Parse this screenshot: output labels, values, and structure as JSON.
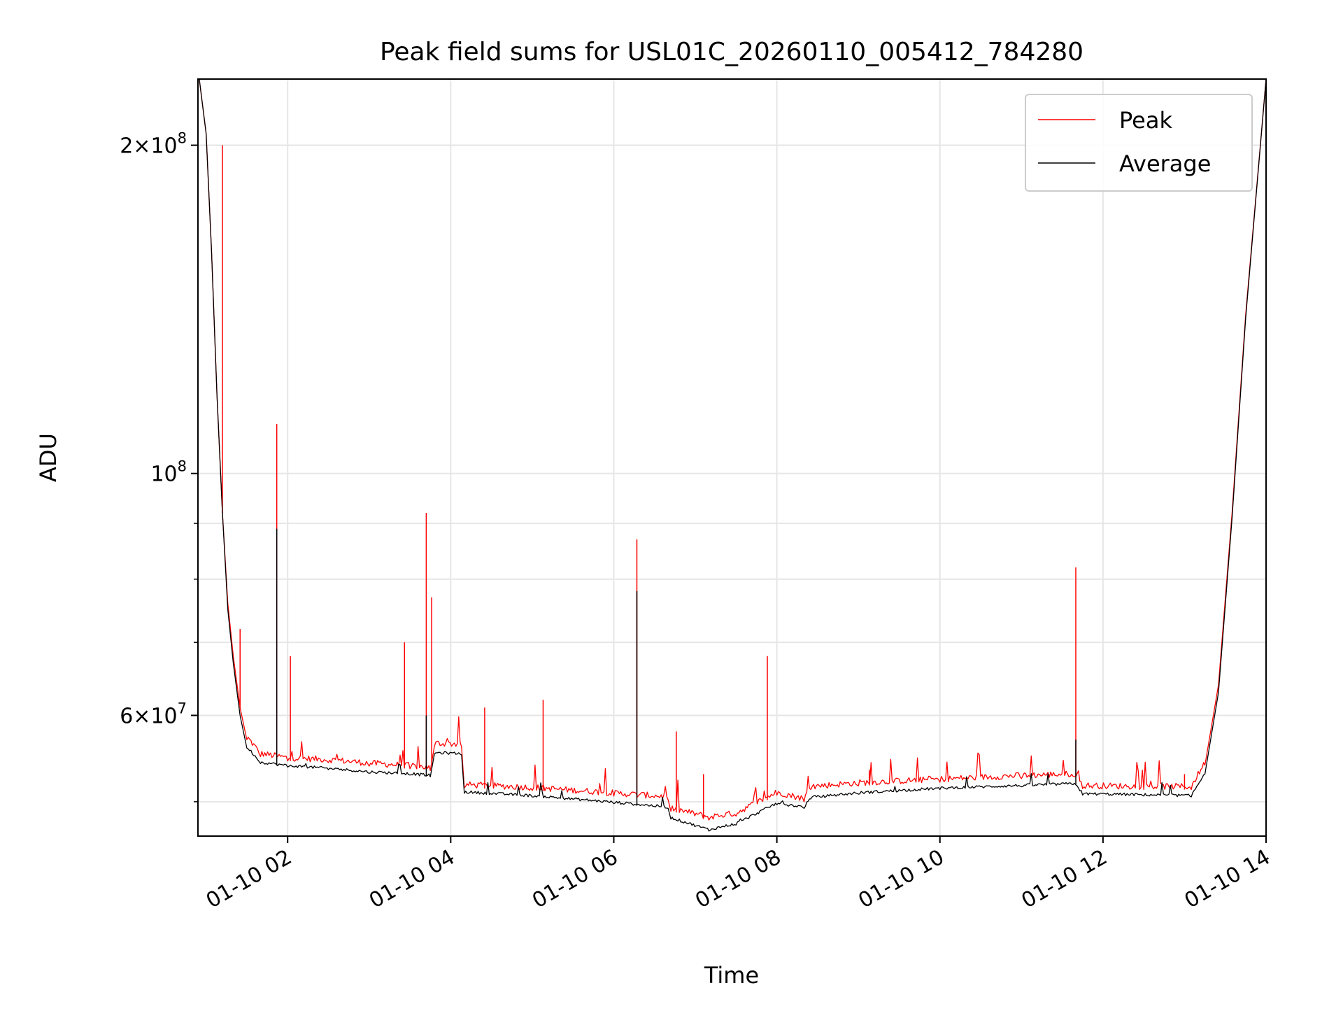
{
  "chart_data": {
    "type": "line",
    "title": "Peak field sums for USL01C_20260110_005412_784280",
    "xlabel": "Time",
    "ylabel": "ADU",
    "x_scale": "time",
    "y_scale": "log",
    "xlim": [
      "2026-01-10 00:54",
      "2026-01-10 14:00"
    ],
    "ylim": [
      46500000,
      230000000
    ],
    "grid": true,
    "legend_position": "upper right",
    "x_ticks": [
      {
        "value": "2026-01-10 02:00",
        "label": "01-10 02"
      },
      {
        "value": "2026-01-10 04:00",
        "label": "01-10 04"
      },
      {
        "value": "2026-01-10 06:00",
        "label": "01-10 06"
      },
      {
        "value": "2026-01-10 08:00",
        "label": "01-10 08"
      },
      {
        "value": "2026-01-10 10:00",
        "label": "01-10 10"
      },
      {
        "value": "2026-01-10 12:00",
        "label": "01-10 12"
      },
      {
        "value": "2026-01-10 14:00",
        "label": "01-10 14"
      }
    ],
    "y_major_ticks": [
      {
        "value": 200000000,
        "label_mantissa": "2",
        "label_base": "×10",
        "label_exp": "8"
      },
      {
        "value": 100000000,
        "label_mantissa": "",
        "label_base": "10",
        "label_exp": "8"
      },
      {
        "value": 60000000,
        "label_mantissa": "6",
        "label_base": "×10",
        "label_exp": "7"
      }
    ],
    "y_minor_ticks": [
      50000000,
      60000000,
      70000000,
      80000000,
      90000000,
      200000000
    ],
    "series": [
      {
        "name": "Peak",
        "color": "#ff0000",
        "points": [
          [
            "2026-01-10 00:55",
            230000000
          ],
          [
            "2026-01-10 01:00",
            205000000
          ],
          [
            "2026-01-10 01:04",
            160000000
          ],
          [
            "2026-01-10 01:08",
            118000000
          ],
          [
            "2026-01-10 01:12",
            92000000
          ],
          [
            "2026-01-10 01:16",
            76000000
          ],
          [
            "2026-01-10 01:20",
            68000000
          ],
          [
            "2026-01-10 01:25",
            61000000
          ],
          [
            "2026-01-10 01:30",
            57000000
          ],
          [
            "2026-01-10 01:40",
            55000000
          ],
          [
            "2026-01-10 02:00",
            54500000
          ],
          [
            "2026-01-10 02:30",
            54300000
          ],
          [
            "2026-01-10 03:00",
            53900000
          ],
          [
            "2026-01-10 03:30",
            53600000
          ],
          [
            "2026-01-10 03:45",
            53400000
          ],
          [
            "2026-01-10 03:48",
            56200000
          ],
          [
            "2026-01-10 04:08",
            56100000
          ],
          [
            "2026-01-10 04:10",
            51500000
          ],
          [
            "2026-01-10 05:00",
            51200000
          ],
          [
            "2026-01-10 06:00",
            50600000
          ],
          [
            "2026-01-10 06:40",
            50200000
          ],
          [
            "2026-01-10 06:42",
            49000000
          ],
          [
            "2026-01-10 07:10",
            48100000
          ],
          [
            "2026-01-10 07:30",
            48500000
          ],
          [
            "2026-01-10 08:00",
            50700000
          ],
          [
            "2026-01-10 08:20",
            50000000
          ],
          [
            "2026-01-10 08:25",
            51300000
          ],
          [
            "2026-01-10 09:00",
            51700000
          ],
          [
            "2026-01-10 10:00",
            52100000
          ],
          [
            "2026-01-10 11:00",
            52500000
          ],
          [
            "2026-01-10 11:40",
            52700000
          ],
          [
            "2026-01-10 11:45",
            51400000
          ],
          [
            "2026-01-10 12:30",
            51300000
          ],
          [
            "2026-01-10 13:05",
            51300000
          ],
          [
            "2026-01-10 13:15",
            54000000
          ],
          [
            "2026-01-10 13:25",
            64000000
          ],
          [
            "2026-01-10 13:35",
            92000000
          ],
          [
            "2026-01-10 13:45",
            140000000
          ],
          [
            "2026-01-10 14:00",
            230000000
          ]
        ],
        "spikes": [
          [
            "2026-01-10 01:12",
            200000000
          ],
          [
            "2026-01-10 01:25",
            72000000
          ],
          [
            "2026-01-10 01:52",
            111000000
          ],
          [
            "2026-01-10 02:02",
            68000000
          ],
          [
            "2026-01-10 03:26",
            70000000
          ],
          [
            "2026-01-10 03:42",
            92000000
          ],
          [
            "2026-01-10 03:46",
            77000000
          ],
          [
            "2026-01-10 04:25",
            61000000
          ],
          [
            "2026-01-10 05:08",
            62000000
          ],
          [
            "2026-01-10 06:17",
            87000000
          ],
          [
            "2026-01-10 06:46",
            58000000
          ],
          [
            "2026-01-10 07:06",
            53000000
          ],
          [
            "2026-01-10 07:53",
            68000000
          ],
          [
            "2026-01-10 09:08",
            53500000
          ],
          [
            "2026-01-10 11:40",
            82000000
          ],
          [
            "2026-01-10 13:00",
            53000000
          ]
        ]
      },
      {
        "name": "Average",
        "color": "#000000",
        "points": [
          [
            "2026-01-10 00:55",
            230000000
          ],
          [
            "2026-01-10 01:00",
            205000000
          ],
          [
            "2026-01-10 01:04",
            160000000
          ],
          [
            "2026-01-10 01:08",
            118000000
          ],
          [
            "2026-01-10 01:12",
            92000000
          ],
          [
            "2026-01-10 01:16",
            75000000
          ],
          [
            "2026-01-10 01:20",
            67000000
          ],
          [
            "2026-01-10 01:25",
            60000000
          ],
          [
            "2026-01-10 01:30",
            56000000
          ],
          [
            "2026-01-10 01:40",
            54200000
          ],
          [
            "2026-01-10 02:00",
            53800000
          ],
          [
            "2026-01-10 02:30",
            53500000
          ],
          [
            "2026-01-10 03:00",
            53100000
          ],
          [
            "2026-01-10 03:30",
            52900000
          ],
          [
            "2026-01-10 03:45",
            52700000
          ],
          [
            "2026-01-10 03:48",
            55300000
          ],
          [
            "2026-01-10 04:08",
            55200000
          ],
          [
            "2026-01-10 04:10",
            50900000
          ],
          [
            "2026-01-10 05:00",
            50500000
          ],
          [
            "2026-01-10 06:00",
            49800000
          ],
          [
            "2026-01-10 06:40",
            49300000
          ],
          [
            "2026-01-10 06:42",
            48200000
          ],
          [
            "2026-01-10 07:10",
            47000000
          ],
          [
            "2026-01-10 07:30",
            47600000
          ],
          [
            "2026-01-10 08:00",
            49700000
          ],
          [
            "2026-01-10 08:20",
            49300000
          ],
          [
            "2026-01-10 08:25",
            50300000
          ],
          [
            "2026-01-10 09:00",
            50800000
          ],
          [
            "2026-01-10 10:00",
            51300000
          ],
          [
            "2026-01-10 11:00",
            51600000
          ],
          [
            "2026-01-10 11:40",
            51800000
          ],
          [
            "2026-01-10 11:45",
            50700000
          ],
          [
            "2026-01-10 12:30",
            50600000
          ],
          [
            "2026-01-10 13:05",
            50500000
          ],
          [
            "2026-01-10 13:15",
            53000000
          ],
          [
            "2026-01-10 13:25",
            63000000
          ],
          [
            "2026-01-10 13:35",
            91000000
          ],
          [
            "2026-01-10 13:45",
            139000000
          ],
          [
            "2026-01-10 14:00",
            230000000
          ]
        ],
        "spikes": [
          [
            "2026-01-10 01:52",
            89000000
          ],
          [
            "2026-01-10 03:42",
            60000000
          ],
          [
            "2026-01-10 06:17",
            78000000
          ],
          [
            "2026-01-10 11:40",
            57000000
          ]
        ]
      }
    ]
  }
}
